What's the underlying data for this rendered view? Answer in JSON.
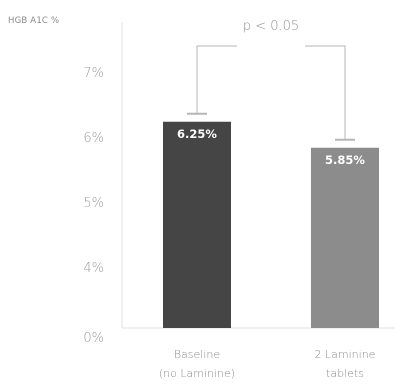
{
  "chart_data": {
    "type": "bar",
    "ylabel": "HGB A1C %",
    "y_ticks": [
      "0%",
      "4%",
      "5%",
      "6%",
      "7%"
    ],
    "y_tick_values": [
      0,
      4,
      5,
      6,
      7
    ],
    "axis_break": "between 0% and 4%",
    "categories": [
      {
        "line1": "Baseline",
        "line2": "(no Laminine)"
      },
      {
        "line1": "2 Laminine",
        "line2": "tablets"
      }
    ],
    "values": [
      6.25,
      5.85
    ],
    "value_labels": [
      "6.25%",
      "5.85%"
    ],
    "bar_colors": [
      "#454545",
      "#8c8c8c"
    ],
    "significance": {
      "label": "p < 0.05",
      "between": [
        0,
        1
      ]
    },
    "grid": false,
    "legend": "none"
  }
}
